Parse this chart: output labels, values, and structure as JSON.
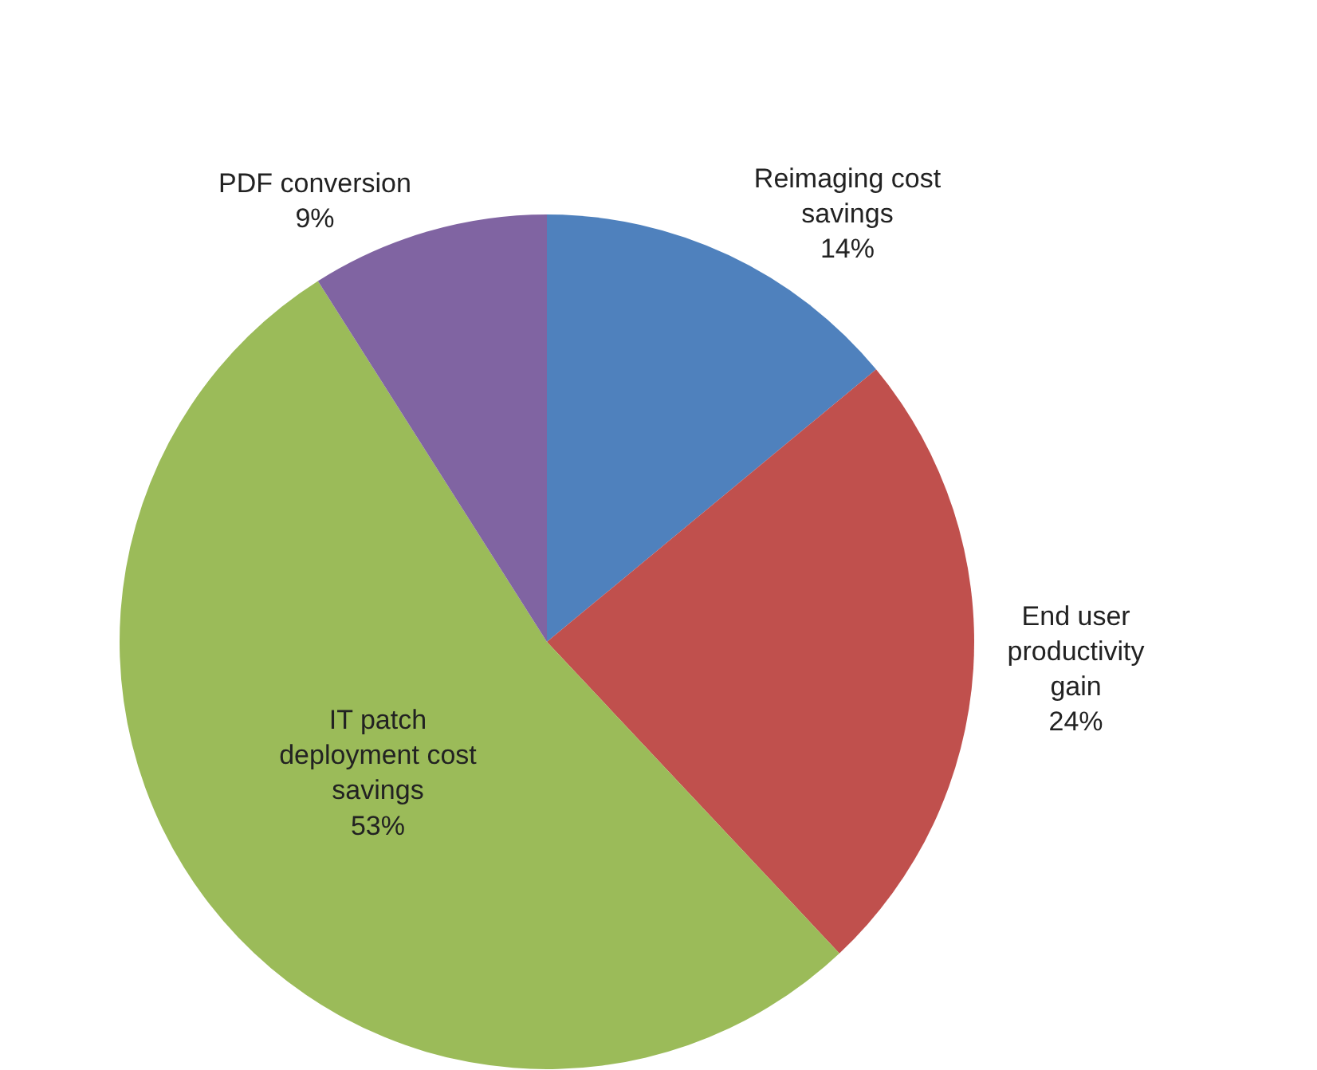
{
  "chart_data": {
    "type": "pie",
    "categories": [
      "Reimaging cost savings",
      "End user productivity gain",
      "IT patch deployment cost savings",
      "PDF conversion"
    ],
    "values": [
      14,
      24,
      53,
      9
    ],
    "colors": [
      "#4f81bd",
      "#c0504d",
      "#9bbb59",
      "#8064a2"
    ],
    "value_labels": [
      "14%",
      "24%",
      "53%",
      "9%"
    ],
    "legend": false
  }
}
